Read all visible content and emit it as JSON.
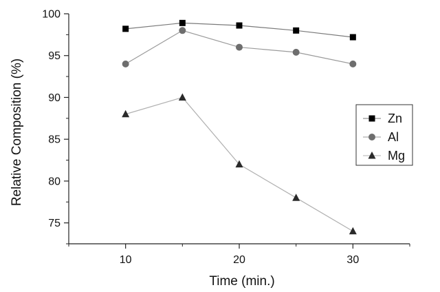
{
  "chart_data": {
    "type": "line",
    "title": "",
    "xlabel": "Time (min.)",
    "ylabel": "Relative Composition (%)",
    "xlim": [
      5,
      35
    ],
    "ylim": [
      72.5,
      100
    ],
    "x_ticks": [
      10,
      20,
      30
    ],
    "y_ticks": [
      75,
      80,
      85,
      90,
      95,
      100
    ],
    "grid": false,
    "legend_position": "right",
    "x": [
      10,
      15,
      20,
      25,
      30
    ],
    "series": [
      {
        "name": "Zn",
        "marker": "square",
        "color": "#000000",
        "line_color": "#7a7a7a",
        "values": [
          98.2,
          98.9,
          98.6,
          98.0,
          97.2
        ]
      },
      {
        "name": "Al",
        "marker": "circle",
        "color": "#6e6e6e",
        "line_color": "#9a9a9a",
        "values": [
          94.0,
          98.0,
          96.0,
          95.4,
          94.0
        ]
      },
      {
        "name": "Mg",
        "marker": "triangle",
        "color": "#2a2a2a",
        "line_color": "#b0b0b0",
        "values": [
          88.0,
          90.0,
          82.0,
          78.0,
          74.0
        ]
      }
    ]
  }
}
